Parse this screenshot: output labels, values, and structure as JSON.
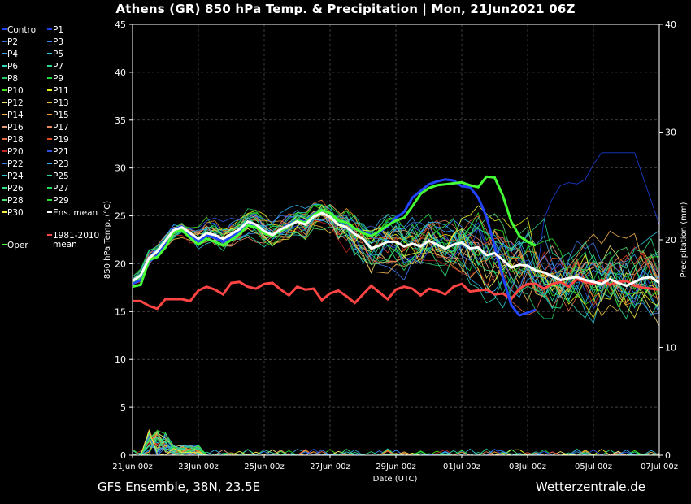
{
  "title": "Athens  (GR)  850 hPa Temp. & Precipitation | Mon, 21Jun2021 06Z",
  "footer": {
    "left": "GFS Ensemble, 38N, 23.5E",
    "right": "Wetterzentrale.de"
  },
  "chart_data": {
    "type": "line",
    "xlabel": "Date (UTC)",
    "ylabel": "850 hPa Temp. (°C)",
    "y2label": "Precipitation (mm)",
    "ylim": [
      0,
      45
    ],
    "y2lim": [
      0,
      40
    ],
    "xlim": [
      0,
      64
    ],
    "grid": true,
    "y_ticks": [
      0,
      5,
      10,
      15,
      20,
      25,
      30,
      35,
      40,
      45
    ],
    "y2_ticks": [
      0,
      10,
      20,
      30,
      40
    ],
    "x_ticks": [
      {
        "x": 0,
        "label": "21Jun 00z"
      },
      {
        "x": 8,
        "label": "23Jun 00z"
      },
      {
        "x": 16,
        "label": "25Jun 00z"
      },
      {
        "x": 24,
        "label": "27Jun 00z"
      },
      {
        "x": 32,
        "label": "29Jun 00z"
      },
      {
        "x": 40,
        "label": "01Jul 00z"
      },
      {
        "x": 48,
        "label": "03Jul 00z"
      },
      {
        "x": 56,
        "label": "05Jul 00z"
      },
      {
        "x": 64,
        "label": "07Jul 00z"
      }
    ],
    "legend": [
      {
        "name": "Control",
        "color": "#2244ff"
      },
      {
        "name": "P1",
        "color": "#1a3fe0"
      },
      {
        "name": "P2",
        "color": "#3a6ad4"
      },
      {
        "name": "P3",
        "color": "#3c86ff"
      },
      {
        "name": "P4",
        "color": "#3aa0e8"
      },
      {
        "name": "P5",
        "color": "#2dc0d8"
      },
      {
        "name": "P6",
        "color": "#2ed6b8"
      },
      {
        "name": "P7",
        "color": "#28d890"
      },
      {
        "name": "P8",
        "color": "#22cc66"
      },
      {
        "name": "P9",
        "color": "#1ed840"
      },
      {
        "name": "P10",
        "color": "#40e010"
      },
      {
        "name": "P11",
        "color": "#e8f020"
      },
      {
        "name": "P12",
        "color": "#f0e070"
      },
      {
        "name": "P13",
        "color": "#f0c040"
      },
      {
        "name": "P14",
        "color": "#f0b050"
      },
      {
        "name": "P15",
        "color": "#f09a30"
      },
      {
        "name": "P16",
        "color": "#e89a80"
      },
      {
        "name": "P17",
        "color": "#e88860"
      },
      {
        "name": "P18",
        "color": "#e86a40"
      },
      {
        "name": "P19",
        "color": "#e04a20"
      },
      {
        "name": "P20",
        "color": "#c02828"
      },
      {
        "name": "P21",
        "color": "#3050e0"
      },
      {
        "name": "P22",
        "color": "#3a80f0"
      },
      {
        "name": "P23",
        "color": "#30b0f0"
      },
      {
        "name": "P24",
        "color": "#30c8d0"
      },
      {
        "name": "P25",
        "color": "#30d8a0"
      },
      {
        "name": "P26",
        "color": "#30e080"
      },
      {
        "name": "P27",
        "color": "#20d860"
      },
      {
        "name": "P28",
        "color": "#50e070"
      },
      {
        "name": "P29",
        "color": "#30e030"
      },
      {
        "name": "P30",
        "color": "#f0f040"
      },
      {
        "name": "Ens. mean",
        "color": "#ffffff"
      },
      {
        "name": "Oper",
        "color": "#44ff33"
      },
      {
        "name": "1981-2010 mean",
        "color": "#ff4444"
      }
    ],
    "ens_mean": [
      18.2,
      18.8,
      20.6,
      21.3,
      22.4,
      23.5,
      23.8,
      23.2,
      22.6,
      23.2,
      23.0,
      22.6,
      23.1,
      23.6,
      24.4,
      24.1,
      23.4,
      23.0,
      23.6,
      24.0,
      24.4,
      24.1,
      24.9,
      25.3,
      24.9,
      24.1,
      23.8,
      23.1,
      22.6,
      21.6,
      21.9,
      22.3,
      22.3,
      21.8,
      22.1,
      21.8,
      22.4,
      22.0,
      21.6,
      22.0,
      22.2,
      21.6,
      21.7,
      20.9,
      21.1,
      20.4,
      19.6,
      19.9,
      19.8,
      19.3,
      19.1,
      18.7,
      18.3,
      18.5,
      18.6,
      18.3,
      18.1,
      17.9,
      18.4,
      18.0,
      17.7,
      18.1,
      18.5,
      18.6,
      18.0
    ],
    "climate_mean": [
      16.1,
      16.1,
      15.6,
      15.3,
      16.3,
      16.3,
      16.3,
      16.1,
      17.2,
      17.6,
      17.3,
      16.8,
      18.0,
      18.1,
      17.6,
      17.4,
      17.9,
      18.0,
      17.3,
      16.7,
      17.6,
      17.3,
      17.4,
      16.2,
      16.9,
      17.2,
      16.6,
      15.9,
      16.8,
      17.7,
      17.0,
      16.3,
      17.3,
      17.6,
      17.4,
      16.7,
      17.4,
      17.2,
      16.8,
      17.6,
      17.9,
      17.1,
      17.2,
      17.3,
      16.8,
      16.9,
      16.3,
      17.4,
      17.9,
      17.9,
      17.4,
      17.9,
      18.1,
      17.6,
      18.4,
      18.1,
      17.9,
      18.3,
      17.8,
      18.1,
      18.2,
      17.7,
      17.5,
      17.4,
      17.3
    ],
    "oper": [
      17.6,
      17.8,
      20.4,
      20.7,
      21.7,
      23.3,
      23.5,
      22.7,
      22.0,
      22.6,
      22.3,
      21.9,
      22.5,
      23.1,
      24.0,
      23.8,
      23.2,
      22.9,
      23.5,
      24.0,
      24.5,
      24.3,
      25.1,
      25.6,
      25.3,
      24.5,
      24.3,
      23.7,
      23.2,
      22.9,
      23.4,
      24.0,
      24.5,
      24.8,
      26.0,
      27.3,
      27.9,
      28.2,
      28.3,
      28.4,
      28.5,
      28.2,
      28.0,
      29.1,
      29.0,
      27.1,
      24.4,
      22.9,
      22.3,
      21.9
    ],
    "control": [
      17.9,
      18.3,
      20.2,
      20.9,
      22.0,
      23.6,
      23.9,
      23.0,
      22.3,
      23.0,
      22.7,
      22.3,
      22.8,
      23.4,
      24.3,
      24.0,
      23.3,
      23.0,
      23.6,
      24.1,
      24.6,
      24.4,
      25.2,
      25.6,
      25.3,
      24.5,
      24.2,
      23.7,
      23.3,
      23.0,
      23.3,
      23.9,
      24.8,
      25.4,
      26.9,
      27.6,
      28.3,
      28.6,
      28.8,
      28.7,
      28.1,
      28.0,
      26.9,
      24.9,
      21.8,
      18.6,
      15.7,
      14.6,
      14.9,
      15.2
    ],
    "member_count": 30
  }
}
